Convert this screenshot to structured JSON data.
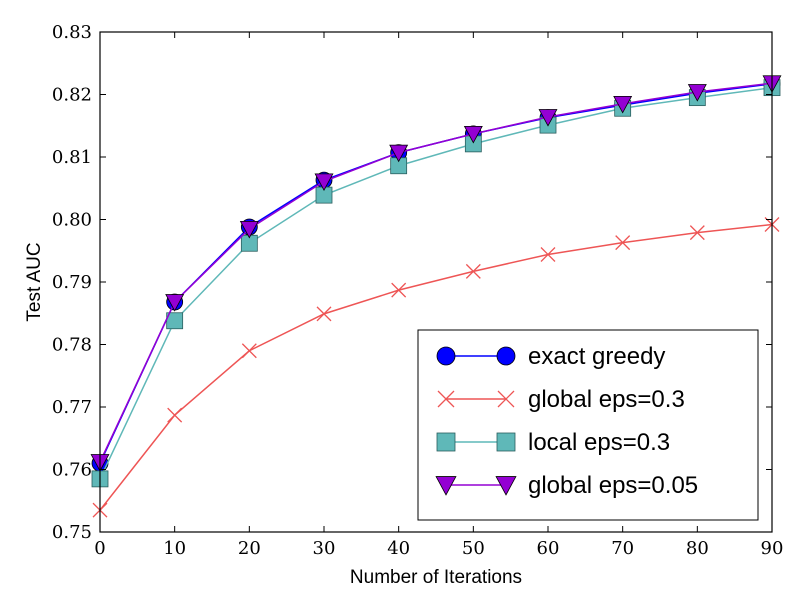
{
  "chart_data": {
    "type": "line",
    "xlabel": "Number of Iterations",
    "ylabel": "Test AUC",
    "xlim": [
      0,
      90
    ],
    "ylim": [
      0.75,
      0.83
    ],
    "x_ticks": [
      "0",
      "10",
      "20",
      "30",
      "40",
      "50",
      "60",
      "70",
      "80",
      "90"
    ],
    "y_ticks": [
      "0.75",
      "0.76",
      "0.77",
      "0.78",
      "0.79",
      "0.80",
      "0.81",
      "0.82",
      "0.83"
    ],
    "x": [
      0,
      10,
      20,
      30,
      40,
      50,
      60,
      70,
      80,
      90
    ],
    "grid": false,
    "legend_position": "bottom-right",
    "series": [
      {
        "name": "exact greedy",
        "marker": "circle",
        "color": "#0000ff",
        "values": [
          0.761,
          0.7868,
          0.7988,
          0.8063,
          0.8107,
          0.8137,
          0.8163,
          0.8183,
          0.8202,
          0.8217
        ]
      },
      {
        "name": "global eps=0.3",
        "marker": "x",
        "color": "#ee5555",
        "values": [
          0.7535,
          0.7687,
          0.779,
          0.7849,
          0.7887,
          0.7917,
          0.7944,
          0.7963,
          0.7979,
          0.7992
        ]
      },
      {
        "name": "local eps=0.3",
        "marker": "square",
        "color": "#5fb8b8",
        "values": [
          0.7585,
          0.7838,
          0.7962,
          0.8039,
          0.8086,
          0.8121,
          0.8151,
          0.8178,
          0.8195,
          0.8211
        ]
      },
      {
        "name": "global eps=0.05",
        "marker": "triangle-down",
        "color": "#9400d3",
        "values": [
          0.7612,
          0.7868,
          0.7985,
          0.8061,
          0.8107,
          0.8137,
          0.8164,
          0.8185,
          0.8204,
          0.8218
        ]
      }
    ]
  }
}
